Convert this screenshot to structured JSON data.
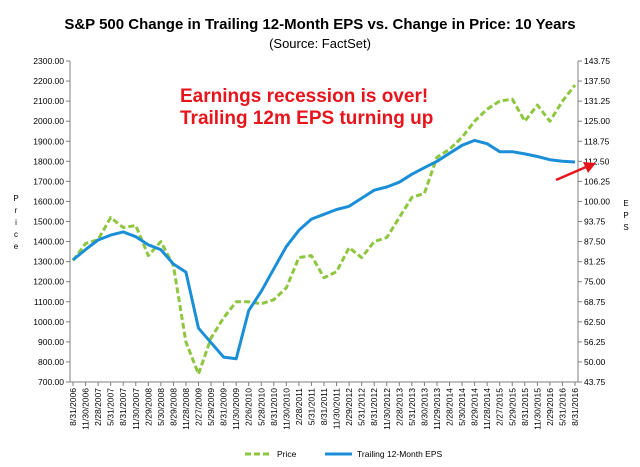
{
  "chart_data": {
    "type": "line",
    "title": "S&P 500 Change in Trailing 12-Month EPS vs. Change in Price: 10 Years",
    "subtitle": "(Source: FactSet)",
    "ylabel_left": "Price",
    "ylabel_right": "EPS",
    "y_left": {
      "ticks": [
        "700.00",
        "800.00",
        "900.00",
        "1000.00",
        "1100.00",
        "1200.00",
        "1300.00",
        "1400.00",
        "1500.00",
        "1600.00",
        "1700.00",
        "1800.00",
        "1900.00",
        "2000.00",
        "2100.00",
        "2200.00",
        "2300.00"
      ],
      "ylim": [
        700,
        2300
      ]
    },
    "y_right": {
      "ticks": [
        "43.75",
        "50.00",
        "56.25",
        "62.50",
        "68.75",
        "75.00",
        "81.25",
        "87.50",
        "93.75",
        "100.00",
        "106.25",
        "112.50",
        "118.75",
        "125.00",
        "131.25",
        "137.50",
        "143.75"
      ],
      "ylim": [
        43.75,
        143.75
      ]
    },
    "x_ticks": [
      "8/31/2006",
      "11/30/2006",
      "2/28/2007",
      "5/31/2007",
      "8/31/2007",
      "11/30/2007",
      "2/29/2008",
      "5/30/2008",
      "8/29/2008",
      "11/28/2008",
      "2/27/2009",
      "5/29/2009",
      "8/31/2009",
      "11/30/2009",
      "2/26/2010",
      "5/28/2010",
      "8/31/2010",
      "11/30/2010",
      "2/28/2011",
      "5/31/2011",
      "8/31/2011",
      "11/30/2011",
      "2/29/2012",
      "5/31/2012",
      "8/31/2012",
      "11/30/2012",
      "2/28/2013",
      "5/31/2013",
      "8/30/2013",
      "11/29/2013",
      "2/28/2014",
      "5/30/2014",
      "8/29/2014",
      "11/28/2014",
      "2/27/2015",
      "5/29/2015",
      "8/31/2015",
      "11/30/2015",
      "2/29/2016",
      "5/31/2016",
      "8/31/2016"
    ],
    "series": [
      {
        "name": "Price",
        "axis": "left",
        "color": "#8dc63f",
        "style": "dashed",
        "x": [
          0,
          1,
          2,
          3,
          4,
          5,
          6,
          7,
          8,
          9,
          10,
          11,
          12,
          13,
          14,
          15,
          16,
          17,
          18,
          19,
          20,
          21,
          22,
          23,
          24,
          25,
          26,
          27,
          28,
          29,
          30,
          31,
          32,
          33,
          34,
          35,
          36,
          37,
          38,
          39,
          40
        ],
        "values": [
          1305,
          1390,
          1410,
          1520,
          1470,
          1480,
          1330,
          1400,
          1280,
          900,
          740,
          920,
          1020,
          1100,
          1100,
          1090,
          1110,
          1170,
          1320,
          1330,
          1220,
          1250,
          1370,
          1320,
          1400,
          1420,
          1520,
          1620,
          1640,
          1820,
          1860,
          1920,
          2000,
          2060,
          2100,
          2110,
          2000,
          2080,
          2000,
          2100,
          2180
        ]
      },
      {
        "name": "Trailing 12-Month EPS",
        "axis": "right",
        "color": "#1a8fd8",
        "style": "solid",
        "x": [
          0,
          1,
          2,
          3,
          4,
          5,
          6,
          7,
          8,
          9,
          10,
          11,
          12,
          13,
          14,
          15,
          16,
          17,
          18,
          19,
          20,
          21,
          22,
          23,
          24,
          25,
          26,
          27,
          28,
          29,
          30,
          31,
          32,
          33,
          34,
          35,
          36,
          37,
          38,
          39,
          40
        ],
        "values": [
          81.8,
          85.0,
          88.0,
          89.5,
          90.5,
          89.0,
          86.5,
          85.0,
          80.5,
          78.0,
          60.5,
          56.0,
          51.5,
          51.0,
          66.0,
          72.0,
          79.0,
          86.0,
          91.0,
          94.5,
          96.0,
          97.5,
          98.5,
          101.0,
          103.5,
          104.5,
          106.0,
          108.5,
          110.5,
          112.5,
          115.0,
          117.5,
          119.0,
          118.0,
          115.5,
          115.5,
          114.8,
          114.0,
          113.0,
          112.5,
          112.3
        ]
      }
    ],
    "annotations": [
      "Earnings recession is over!",
      "Trailing 12m EPS turning up"
    ],
    "legend": {
      "position": "bottom-center",
      "entries": [
        "Price",
        "Trailing 12-Month EPS"
      ]
    },
    "grid": false
  }
}
